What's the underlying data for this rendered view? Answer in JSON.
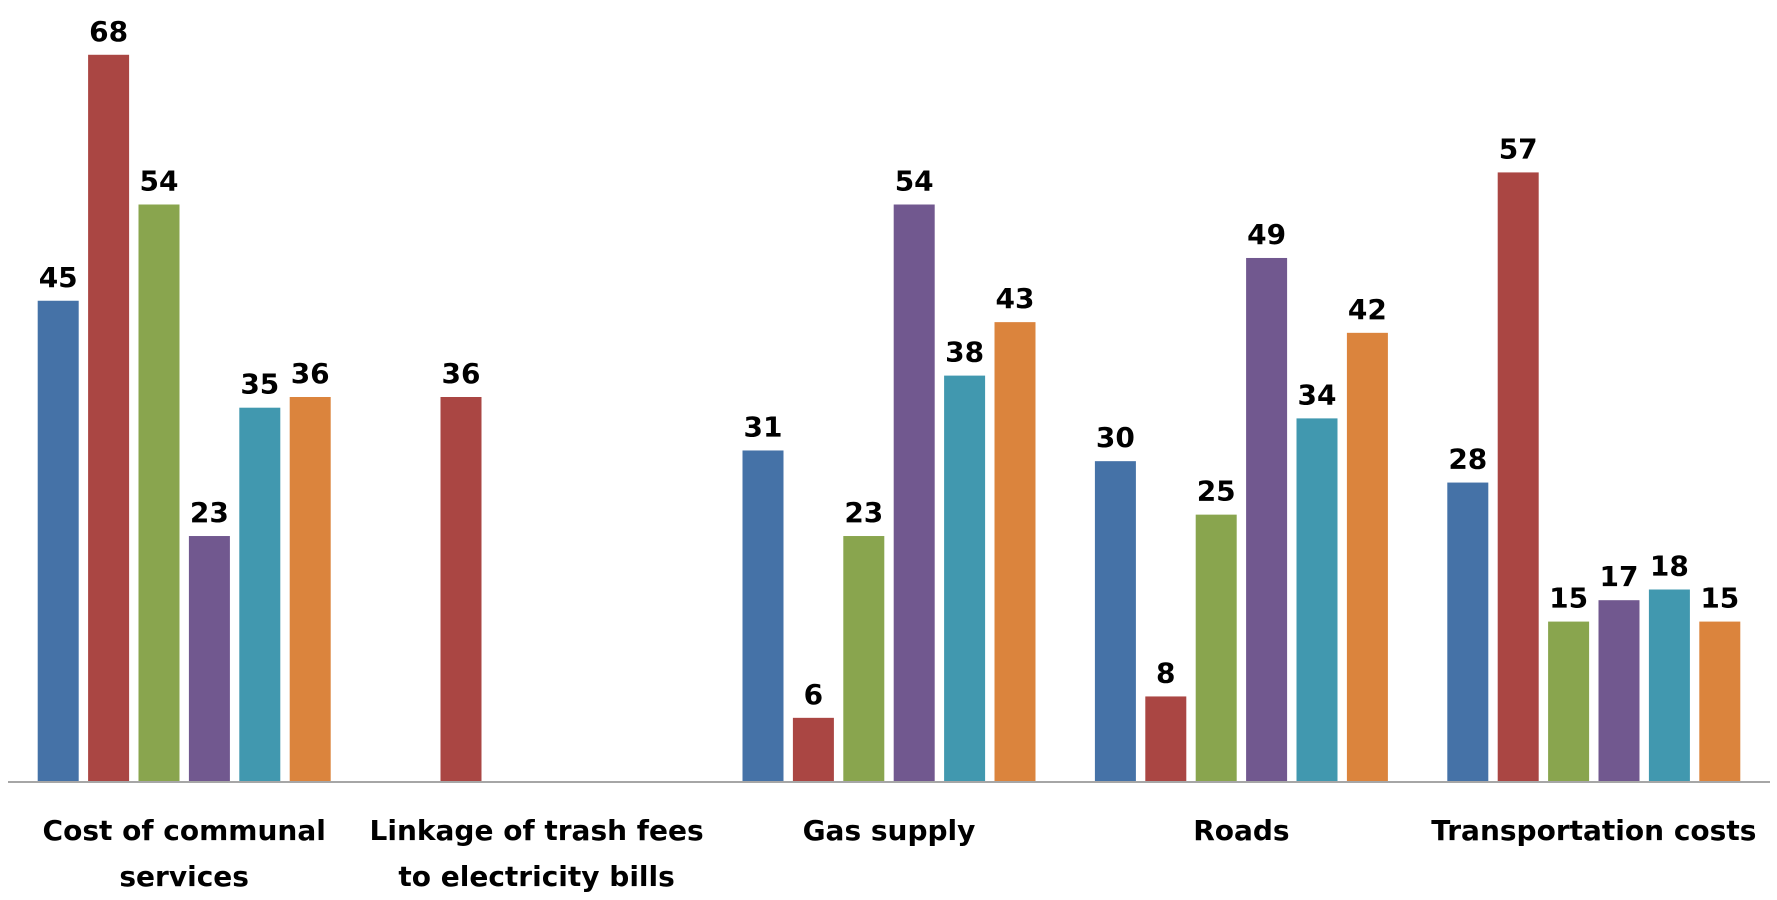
{
  "chart_data": {
    "type": "bar",
    "categories": [
      "Cost of communal services",
      "Linkage of trash fees to electricity bills",
      "Gas supply",
      "Roads",
      "Transportation costs"
    ],
    "series": [
      {
        "color": "#4572a7",
        "values": [
          45,
          null,
          31,
          30,
          28
        ]
      },
      {
        "color": "#aa4643",
        "values": [
          68,
          36,
          6,
          8,
          57
        ]
      },
      {
        "color": "#89a54e",
        "values": [
          54,
          null,
          23,
          25,
          15
        ]
      },
      {
        "color": "#71588f",
        "values": [
          23,
          null,
          54,
          49,
          17
        ]
      },
      {
        "color": "#4198af",
        "values": [
          35,
          null,
          38,
          34,
          18
        ]
      },
      {
        "color": "#db843d",
        "values": [
          36,
          null,
          43,
          42,
          15
        ]
      }
    ],
    "ylim": [
      0,
      72
    ],
    "data_labels": true
  }
}
